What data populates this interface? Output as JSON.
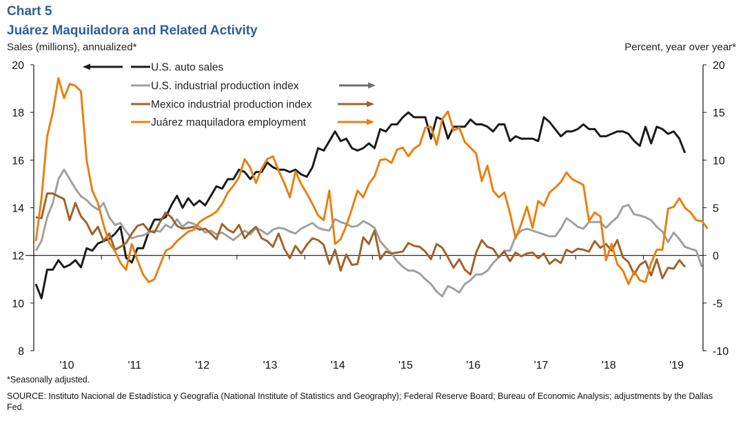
{
  "header": {
    "chart_number": "Chart 5",
    "title": "Juárez Maquiladora and Related Activity",
    "left_axis_unit": "Sales (millions), annualized*",
    "right_axis_unit": "Percent, year over year*"
  },
  "footer": {
    "note": "*Seasonally adjusted.",
    "source": "SOURCE: Instituto Nacional de Estadística y Geografía (National Institute of Statistics and Geography); Federal Reserve Board; Bureau of Economic Analysis; adjustments by the Dallas Fed."
  },
  "chart_data": {
    "type": "line",
    "title": "Juárez Maquiladora and Related Activity",
    "xlabel": "",
    "ylabel_left": "Sales (millions), annualized*",
    "ylabel_right": "Percent, year over year*",
    "x_start": "2010-01",
    "x_frequency": "monthly",
    "x_tick_labels": [
      "'10",
      "'11",
      "'12",
      "'13",
      "'14",
      "'15",
      "'16",
      "'17",
      "'18",
      "'19"
    ],
    "ylim_left": [
      8,
      20
    ],
    "yticks_left": [
      8,
      10,
      12,
      14,
      16,
      18,
      20
    ],
    "ylim_right": [
      -10,
      20
    ],
    "yticks_right": [
      -10,
      -5,
      0,
      5,
      10,
      15,
      20
    ],
    "grid": false,
    "zero_line_right": 0,
    "legend": [
      {
        "label": "U.S. auto sales",
        "axis": "left",
        "arrow": "left",
        "color": "#1a1a1a"
      },
      {
        "label": "U.S. industrial production index",
        "axis": "right",
        "arrow": "right",
        "color": "#a0a0a0",
        "arrow_color": "#6e6e6e"
      },
      {
        "label": "Mexico industrial production index",
        "axis": "right",
        "arrow": "right",
        "color": "#a0622a"
      },
      {
        "label": "Juárez maquiladora employment",
        "axis": "right",
        "arrow": "right",
        "color": "#e8800f"
      }
    ],
    "legend_position": "top-left",
    "series": [
      {
        "name": "U.S. auto sales",
        "axis": "left",
        "color": "#1a1a1a",
        "values": [
          10.8,
          10.2,
          11.4,
          11.4,
          11.8,
          11.5,
          11.6,
          11.8,
          11.5,
          12.3,
          12.2,
          12.5,
          12.6,
          12.7,
          12.9,
          13.2,
          11.9,
          11.7,
          12.3,
          12.3,
          13.0,
          13.5,
          13.5,
          13.6,
          14.1,
          14.5,
          14.0,
          14.4,
          14.1,
          14.3,
          14.1,
          14.5,
          14.9,
          14.8,
          15.2,
          15.2,
          15.6,
          15.5,
          15.2,
          15.5,
          15.5,
          15.9,
          15.7,
          15.6,
          15.6,
          15.5,
          15.6,
          15.4,
          15.3,
          15.7,
          16.5,
          16.4,
          16.8,
          17.2,
          16.8,
          16.9,
          16.5,
          16.4,
          16.5,
          16.7,
          16.5,
          17.3,
          17.2,
          17.5,
          17.5,
          17.8,
          18.0,
          17.8,
          17.8,
          17.8,
          16.9,
          17.8,
          17.7,
          16.9,
          17.4,
          17.4,
          17.4,
          17.7,
          17.5,
          17.5,
          17.4,
          17.2,
          17.5,
          17.5,
          16.8,
          17.0,
          16.9,
          16.9,
          16.9,
          16.8,
          17.8,
          17.6,
          17.3,
          17.0,
          17.2,
          17.2,
          17.3,
          17.5,
          17.3,
          17.3,
          17.0,
          17.0,
          17.1,
          17.2,
          17.2,
          17.1,
          16.8,
          16.6,
          17.4,
          16.7,
          17.4,
          17.3,
          17.1,
          17.2,
          16.9,
          16.3
        ]
      },
      {
        "name": "U.S. industrial production index",
        "axis": "right",
        "color": "#a0a0a0",
        "values": [
          0.5,
          1.5,
          4.0,
          5.5,
          8.0,
          9.0,
          8.0,
          7.0,
          6.2,
          5.8,
          5.2,
          4.8,
          5.5,
          4.0,
          3.2,
          3.4,
          2.5,
          1.8,
          2.0,
          2.1,
          2.4,
          2.6,
          2.5,
          3.2,
          2.9,
          3.8,
          3.0,
          3.5,
          3.3,
          3.0,
          2.4,
          2.6,
          2.2,
          2.4,
          2.0,
          1.6,
          2.1,
          2.6,
          2.2,
          2.9,
          2.6,
          2.2,
          2.7,
          2.9,
          2.8,
          2.5,
          2.3,
          2.8,
          3.1,
          3.4,
          2.9,
          2.7,
          2.6,
          3.8,
          3.5,
          3.3,
          3.0,
          3.1,
          3.6,
          3.3,
          2.9,
          1.5,
          0.8,
          0.2,
          -0.6,
          -1.2,
          -1.6,
          -1.6,
          -1.9,
          -2.5,
          -3.0,
          -3.8,
          -4.3,
          -3.2,
          -3.5,
          -3.9,
          -3.0,
          -2.6,
          -2.0,
          -2.0,
          -1.6,
          -0.8,
          -0.2,
          0.5,
          0.5,
          2.0,
          2.6,
          2.8,
          2.6,
          2.4,
          2.2,
          2.0,
          2.0,
          2.8,
          3.9,
          3.5,
          3.0,
          2.8,
          3.5,
          3.5,
          3.5,
          2.9,
          3.5,
          4.0,
          5.1,
          5.3,
          4.3,
          4.2,
          4.0,
          3.7,
          3.0,
          2.5,
          1.4,
          2.4,
          1.7,
          0.9,
          0.7,
          0.5,
          -1.2
        ]
      },
      {
        "name": "Mexico industrial production index",
        "axis": "right",
        "color": "#a0622a",
        "values": [
          4.0,
          3.9,
          6.5,
          6.5,
          6.2,
          5.9,
          3.7,
          5.5,
          4.1,
          3.4,
          2.2,
          3.0,
          1.5,
          2.3,
          0.6,
          0.9,
          1.3,
          2.3,
          3.1,
          3.3,
          2.6,
          2.4,
          3.5,
          4.5,
          4.0,
          3.1,
          2.8,
          2.9,
          3.0,
          2.7,
          2.8,
          2.3,
          1.7,
          3.3,
          2.7,
          2.4,
          3.2,
          1.8,
          2.5,
          3.0,
          1.8,
          1.5,
          0.9,
          2.3,
          0.7,
          -0.3,
          1.0,
          0.2,
          1.1,
          1.8,
          1.6,
          1.1,
          -0.9,
          0.6,
          -1.6,
          0.1,
          -1.0,
          -0.9,
          1.9,
          1.2,
          2.6,
          -0.4,
          0.4,
          0.2,
          0.3,
          0.4,
          1.3,
          1.0,
          0.9,
          0.4,
          -0.4,
          1.2,
          0.8,
          -0.2,
          -1.3,
          -0.4,
          -1.5,
          -2.0,
          0.3,
          1.6,
          0.9,
          0.7,
          -0.2,
          0.4,
          -0.6,
          0.3,
          -0.1,
          0.2,
          0.3,
          -0.3,
          0.2,
          -0.9,
          -0.4,
          -0.8,
          0.6,
          0.3,
          0.7,
          0.6,
          0.4,
          1.5,
          0.8,
          1.2,
          0.5,
          1.6,
          -0.2,
          -0.7,
          -2.0,
          -1.0,
          -0.6,
          -2.1,
          -0.4,
          -2.4,
          -1.3,
          -1.4,
          -0.5,
          -1.2
        ]
      },
      {
        "name": "Juárez maquiladora employment",
        "axis": "right",
        "color": "#e8800f",
        "values": [
          1.5,
          6.0,
          12.5,
          15.0,
          18.6,
          16.5,
          18.0,
          17.8,
          17.2,
          10.0,
          6.8,
          5.5,
          3.2,
          1.3,
          0.5,
          -0.8,
          -1.5,
          1.2,
          -0.5,
          -2.0,
          -2.8,
          -2.5,
          -1.0,
          0.5,
          0.8,
          1.5,
          2.0,
          2.5,
          2.7,
          3.5,
          3.9,
          4.2,
          4.6,
          5.4,
          6.6,
          7.3,
          8.2,
          10.1,
          9.2,
          7.6,
          9.1,
          10.1,
          10.4,
          8.9,
          7.6,
          6.1,
          8.8,
          7.5,
          6.5,
          5.4,
          4.2,
          3.7,
          6.8,
          1.2,
          1.7,
          3.1,
          4.9,
          6.8,
          6.1,
          7.5,
          8.3,
          10.0,
          10.1,
          9.7,
          11.1,
          11.3,
          10.4,
          11.2,
          11.6,
          13.4,
          13.5,
          11.6,
          14.3,
          15.1,
          13.1,
          13.4,
          11.9,
          11.3,
          10.7,
          7.8,
          9.4,
          6.8,
          6.1,
          6.6,
          4.4,
          1.8,
          3.3,
          5.1,
          2.9,
          5.7,
          5.2,
          6.6,
          7.1,
          7.7,
          8.7,
          8.0,
          7.7,
          7.4,
          3.6,
          4.5,
          4.1,
          -0.5,
          1.2,
          -0.9,
          -1.6,
          -3.0,
          -1.7,
          -2.6,
          -2.8,
          -0.8,
          0.6,
          0.6,
          4.9,
          5.1,
          6.0,
          5.0,
          4.5,
          3.7,
          3.6,
          2.8
        ]
      }
    ]
  }
}
